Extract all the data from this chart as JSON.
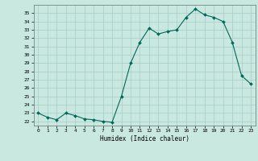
{
  "xlabel": "Humidex (Indice chaleur)",
  "ylabel": "",
  "bg_color": "#c8e8e0",
  "grid_color": "#a8ccc8",
  "line_color": "#006858",
  "marker_color": "#006858",
  "x_values": [
    0,
    1,
    2,
    3,
    4,
    5,
    6,
    7,
    8,
    9,
    10,
    11,
    12,
    13,
    14,
    15,
    16,
    17,
    18,
    19,
    20,
    21,
    22,
    23
  ],
  "y_values": [
    23.0,
    22.5,
    22.2,
    23.0,
    22.7,
    22.3,
    22.2,
    22.0,
    21.9,
    25.0,
    29.0,
    31.5,
    33.2,
    32.5,
    32.8,
    33.0,
    34.5,
    35.5,
    34.8,
    34.5,
    34.0,
    31.5,
    27.5,
    26.5
  ],
  "ylim": [
    21.5,
    36.0
  ],
  "yticks": [
    22,
    23,
    24,
    25,
    26,
    27,
    28,
    29,
    30,
    31,
    32,
    33,
    34,
    35
  ],
  "xlim": [
    -0.5,
    23.5
  ],
  "xticks": [
    0,
    1,
    2,
    3,
    4,
    5,
    6,
    7,
    8,
    9,
    10,
    11,
    12,
    13,
    14,
    15,
    16,
    17,
    18,
    19,
    20,
    21,
    22,
    23
  ]
}
